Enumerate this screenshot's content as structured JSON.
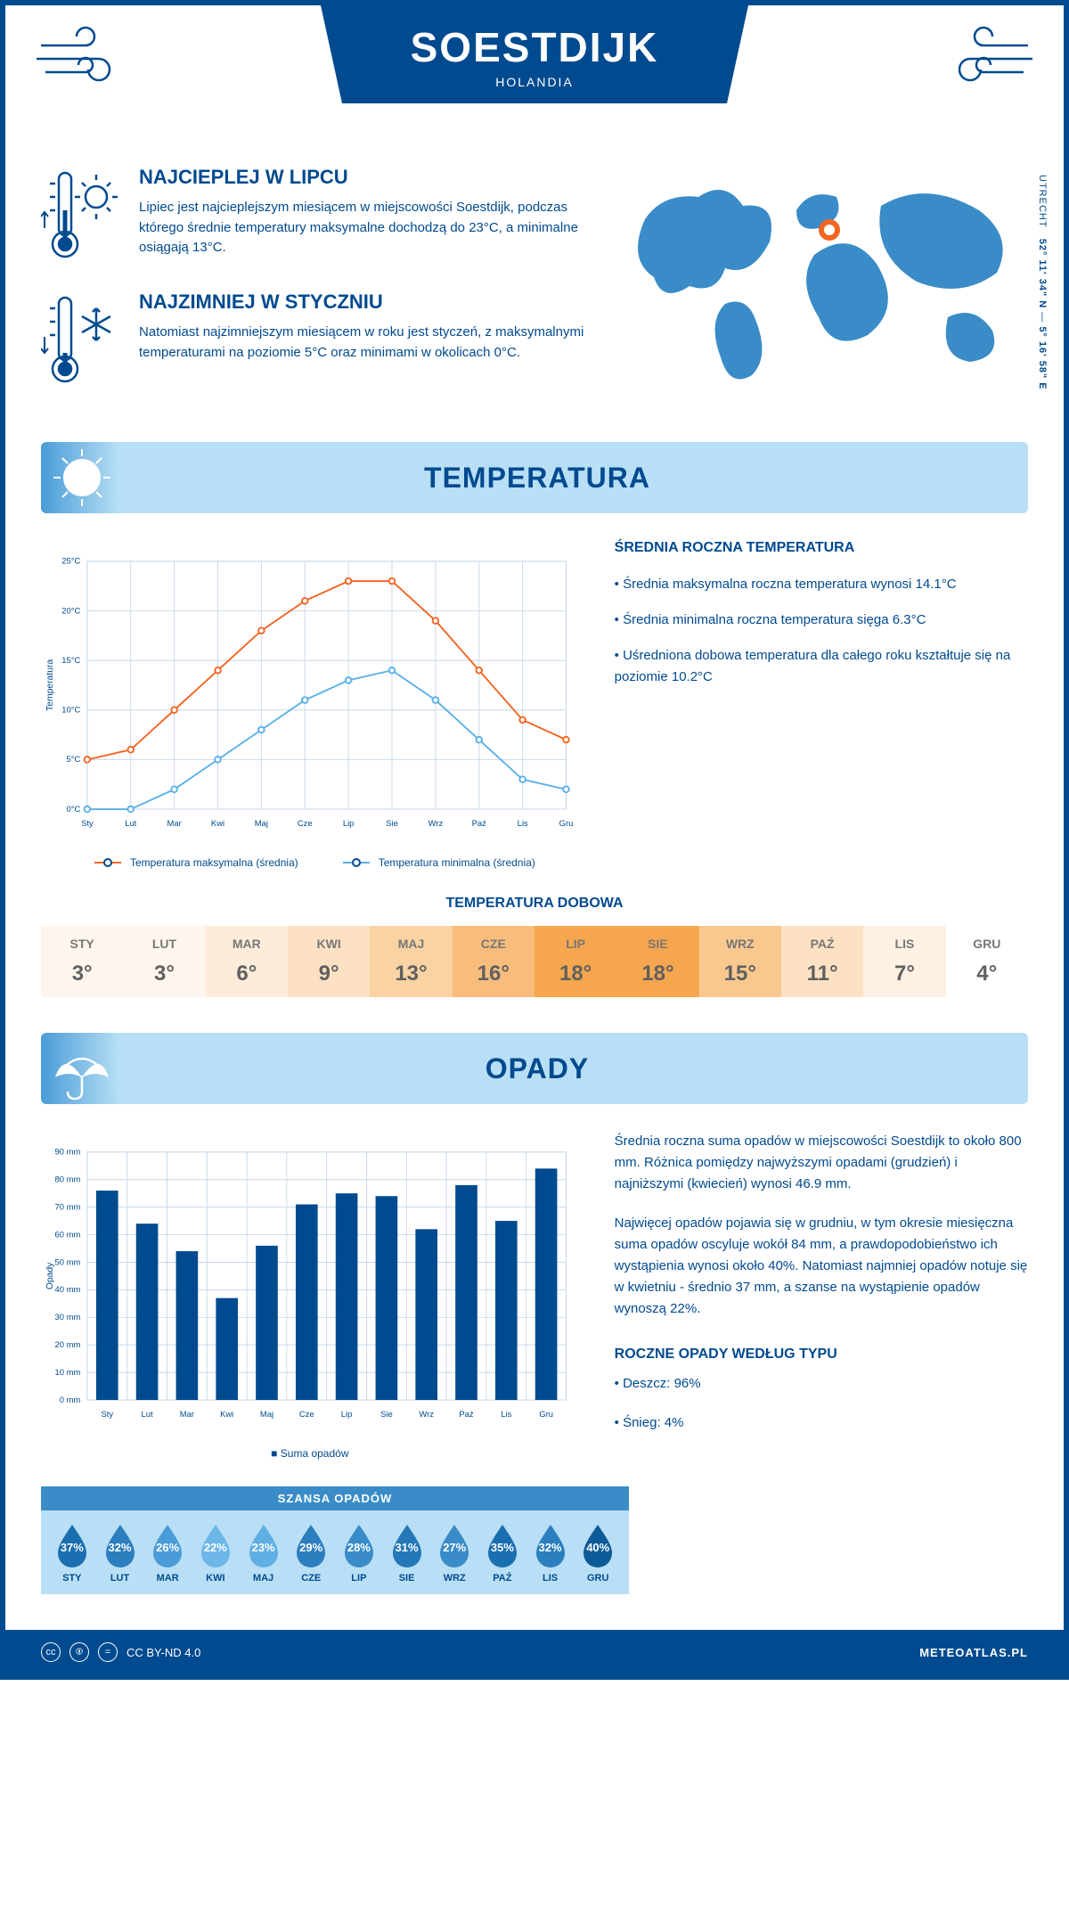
{
  "header": {
    "title": "SOESTDIJK",
    "subtitle": "HOLANDIA"
  },
  "coords": {
    "lat": "52° 11' 34\" N",
    "lon": "5° 16' 58\" E",
    "region": "UTRECHT"
  },
  "intro": {
    "warmest": {
      "title": "NAJCIEPLEJ W LIPCU",
      "text": "Lipiec jest najcieplejszym miesiącem w miejscowości Soestdijk, podczas którego średnie temperatury maksymalne dochodzą do 23°C, a minimalne osiągają 13°C."
    },
    "coldest": {
      "title": "NAJZIMNIEJ W STYCZNIU",
      "text": "Natomiast najzimniejszym miesiącem w roku jest styczeń, z maksymalnymi temperaturami na poziomie 5°C oraz minimami w okolicach 0°C."
    }
  },
  "temperatura": {
    "section_title": "TEMPERATURA",
    "side_title": "ŚREDNIA ROCZNA TEMPERATURA",
    "side_items": [
      "• Średnia maksymalna roczna temperatura wynosi 14.1°C",
      "• Średnia minimalna roczna temperatura sięga 6.3°C",
      "• Uśredniona dobowa temperatura dla całego roku kształtuje się na poziomie 10.2°C"
    ],
    "chart": {
      "type": "line",
      "months": [
        "Sty",
        "Lut",
        "Mar",
        "Kwi",
        "Maj",
        "Cze",
        "Lip",
        "Sie",
        "Wrz",
        "Paź",
        "Lis",
        "Gru"
      ],
      "y_label": "Temperatura",
      "ylim": [
        0,
        25
      ],
      "ytick_step": 5,
      "series": [
        {
          "name": "Temperatura maksymalna (średnia)",
          "color": "#f26522",
          "values": [
            5,
            6,
            10,
            14,
            18,
            21,
            23,
            23,
            19,
            14,
            9,
            7
          ]
        },
        {
          "name": "Temperatura minimalna (średnia)",
          "color": "#5ab0e8",
          "values": [
            0,
            0,
            2,
            5,
            8,
            11,
            13,
            14,
            11,
            7,
            3,
            2
          ]
        }
      ],
      "grid_color": "#c8d8e8",
      "background": "#ffffff"
    },
    "dobowa": {
      "title": "TEMPERATURA DOBOWA",
      "months": [
        "STY",
        "LUT",
        "MAR",
        "KWI",
        "MAJ",
        "CZE",
        "LIP",
        "SIE",
        "WRZ",
        "PAŹ",
        "LIS",
        "GRU"
      ],
      "values": [
        "3°",
        "3°",
        "6°",
        "9°",
        "13°",
        "16°",
        "18°",
        "18°",
        "15°",
        "11°",
        "7°",
        "4°"
      ],
      "colors": [
        "#fef6ee",
        "#fef6ee",
        "#fdecd9",
        "#fce1c2",
        "#fad2a4",
        "#f8bd7c",
        "#f6a64e",
        "#f6a64e",
        "#f9c88f",
        "#fce1c2",
        "#fef1e3",
        "#ffffff"
      ]
    }
  },
  "opady": {
    "section_title": "OPADY",
    "paragraphs": [
      "Średnia roczna suma opadów w miejscowości Soestdijk to około 800 mm. Różnica pomiędzy najwyższymi opadami (grudzień) i najniższymi (kwiecień) wynosi 46.9 mm.",
      "Najwięcej opadów pojawia się w grudniu, w tym okresie miesięczna suma opadów oscyluje wokół 84 mm, a prawdopodobieństwo ich wystąpienia wynosi około 40%. Natomiast najmniej opadów notuje się w kwietniu - średnio 37 mm, a szanse na wystąpienie opadów wynoszą 22%."
    ],
    "type_title": "ROCZNE OPADY WEDŁUG TYPU",
    "type_items": [
      "• Deszcz: 96%",
      "• Śnieg: 4%"
    ],
    "chart": {
      "type": "bar",
      "months": [
        "Sty",
        "Lut",
        "Mar",
        "Kwi",
        "Maj",
        "Cze",
        "Lip",
        "Sie",
        "Wrz",
        "Paź",
        "Lis",
        "Gru"
      ],
      "y_label": "Opady",
      "ylim": [
        0,
        90
      ],
      "ytick_step": 10,
      "values": [
        76,
        64,
        54,
        37,
        56,
        71,
        75,
        74,
        62,
        78,
        65,
        84
      ],
      "bar_color": "#004a8f",
      "grid_color": "#c8d8e8",
      "legend": "Suma opadów"
    },
    "szansa": {
      "title": "SZANSA OPADÓW",
      "months": [
        "STY",
        "LUT",
        "MAR",
        "KWI",
        "MAJ",
        "CZE",
        "LIP",
        "SIE",
        "WRZ",
        "PAŹ",
        "LIS",
        "GRU"
      ],
      "values": [
        "37%",
        "32%",
        "26%",
        "22%",
        "23%",
        "29%",
        "28%",
        "31%",
        "27%",
        "35%",
        "32%",
        "40%"
      ],
      "colors": [
        "#1a6fb0",
        "#2c7fbf",
        "#4a9cd8",
        "#6cb6e8",
        "#5fafe3",
        "#2c7fbf",
        "#3a8cc8",
        "#2478b8",
        "#3a8cc8",
        "#1a6fb0",
        "#2c7fbf",
        "#0d5a98"
      ]
    }
  },
  "footer": {
    "license": "CC BY-ND 4.0",
    "site": "METEOATLAS.PL"
  }
}
